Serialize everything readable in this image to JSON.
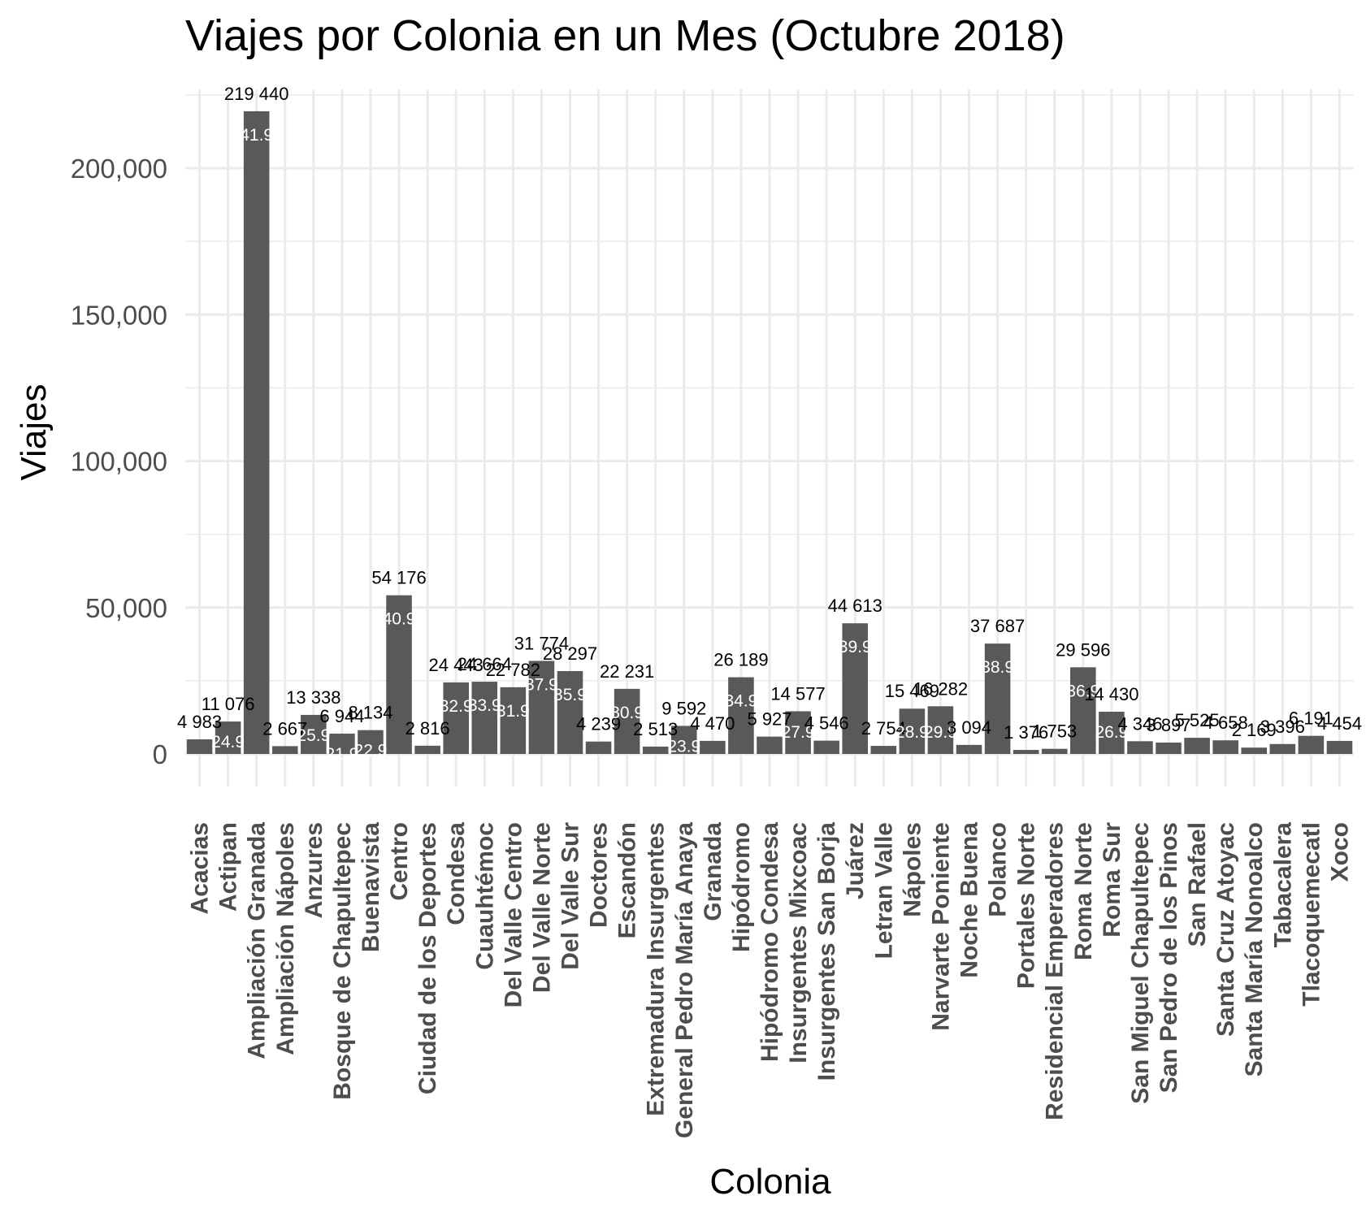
{
  "chart_data": {
    "type": "bar",
    "title": "Viajes por Colonia en un Mes (Octubre 2018)",
    "xlabel": "Colonia",
    "ylabel": "Viajes",
    "ylim": [
      0,
      230000
    ],
    "yticks": [
      0,
      50000,
      100000,
      150000,
      200000
    ],
    "ytick_labels": [
      "0",
      "50,000",
      "100,000",
      "150,000",
      "200,000"
    ],
    "grid": true,
    "legend": "none",
    "bar_color": "#595959",
    "categories": [
      "Acacias",
      "Actipan",
      "Ampliación Granada",
      "Ampliación Nápoles",
      "Anzures",
      "Bosque de Chapultepec",
      "Buenavista",
      "Centro",
      "Ciudad de los Deportes",
      "Condesa",
      "Cuauhtémoc",
      "Del Valle Centro",
      "Del Valle Norte",
      "Del Valle Sur",
      "Doctores",
      "Escandón",
      "Extremadura Insurgentes",
      "General Pedro María Anaya",
      "Granada",
      "Hipódromo",
      "Hipódromo Condesa",
      "Insurgentes Mixcoac",
      "Insurgentes San Borja",
      "Juárez",
      "Letran Valle",
      "Nápoles",
      "Narvarte Poniente",
      "Noche Buena",
      "Polanco",
      "Portales Norte",
      "Residencial Emperadores",
      "Roma Norte",
      "Roma Sur",
      "San Miguel Chapultepec",
      "San Pedro de los Pinos",
      "San Rafael",
      "Santa Cruz Atoyac",
      "Santa María Nonoalco",
      "Tabacalera",
      "Tlacoquemecatl",
      "Xoco"
    ],
    "values": [
      4983,
      11076,
      219440,
      2667,
      13338,
      6944,
      8134,
      54176,
      2816,
      24443,
      24664,
      22782,
      31774,
      28297,
      4239,
      22231,
      2513,
      9592,
      4470,
      26189,
      5927,
      14577,
      4546,
      44613,
      2754,
      15469,
      16282,
      3094,
      37687,
      1376,
      1753,
      29596,
      14430,
      4346,
      3897,
      5525,
      4658,
      2169,
      3396,
      6191,
      4454
    ],
    "value_labels": [
      "4 983",
      "11 076",
      "219 440",
      "2 667",
      "13 338",
      "6 944",
      "8 134",
      "54 176",
      "2 816",
      "24 443",
      "24 664",
      "22 782",
      "31 774",
      "28 297",
      "4 239",
      "22 231",
      "2 513",
      "9 592",
      "4 470",
      "26 189",
      "5 927",
      "14 577",
      "4 546",
      "44 613",
      "2 754",
      "15 469",
      "16 282",
      "3 094",
      "37 687",
      "1 376",
      "1 753",
      "29 596",
      "14 430",
      "4 346",
      "3 897",
      "5 525",
      "4 658",
      "2 169",
      "3 396",
      "6 191",
      "4 454"
    ],
    "pct_labels": [
      "",
      "24.9",
      "41.9",
      "",
      "25.9",
      "21.9",
      "22.9",
      "40.9",
      "",
      "32.9",
      "33.9",
      "31.9",
      "37.9",
      "35.9",
      "",
      "30.9",
      "",
      "23.9",
      "",
      "34.9",
      "",
      "27.9",
      "",
      "39.9",
      "",
      "28.9",
      "29.9",
      "",
      "38.9",
      "",
      "",
      "36.9",
      "26.9",
      "",
      "",
      "",
      "",
      "",
      "",
      "",
      ""
    ]
  }
}
